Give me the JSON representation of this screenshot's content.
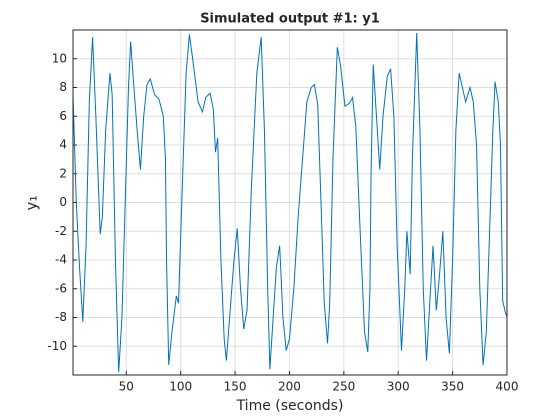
{
  "chart_data": {
    "type": "line",
    "title": "Simulated output #1: y1",
    "xlabel": "Time (seconds)",
    "ylabel": "y₁",
    "color": "#0072bd",
    "grid": true,
    "xlim": [
      1,
      400
    ],
    "ylim": [
      -12,
      12
    ],
    "xticks": [
      50,
      100,
      150,
      200,
      250,
      300,
      350,
      400
    ],
    "yticks": [
      -10,
      -8,
      -6,
      -4,
      -2,
      0,
      2,
      4,
      6,
      8,
      10
    ],
    "x": [
      1,
      4,
      7,
      10,
      13,
      16,
      19,
      22,
      26,
      28,
      31,
      35,
      37,
      40,
      43,
      46,
      49,
      52,
      54,
      57,
      60,
      63,
      66,
      69,
      72,
      76,
      80,
      84,
      86,
      87,
      89,
      92,
      96,
      98,
      101,
      105,
      108,
      111,
      116,
      120,
      123,
      127,
      130,
      132,
      134,
      137,
      140,
      142,
      145,
      149,
      152,
      155,
      158,
      161,
      165,
      170,
      174,
      177,
      180,
      182,
      185,
      188,
      191,
      194,
      197,
      200,
      204,
      208,
      212,
      216,
      220,
      223,
      226,
      229,
      232,
      235,
      237,
      240,
      244,
      247,
      251,
      255,
      258,
      261,
      265,
      269,
      272,
      274,
      275,
      277,
      280,
      283,
      286,
      290,
      293,
      296,
      299,
      303,
      306,
      308,
      311,
      313,
      317,
      320,
      323,
      326,
      329,
      332,
      335,
      338,
      341,
      344,
      347,
      350,
      353,
      356,
      359,
      362,
      366,
      369,
      372,
      375,
      378,
      381,
      384,
      387,
      389,
      392,
      394,
      396,
      398,
      400
    ],
    "values": [
      7.5,
      0,
      -4.5,
      -8.3,
      -3,
      7,
      11.5,
      6,
      -2.2,
      -1,
      5,
      9,
      7.5,
      -4,
      -11.8,
      -8,
      0,
      8,
      11.2,
      8,
      5,
      2.3,
      6,
      8.2,
      8.6,
      7.5,
      7.2,
      6,
      3,
      -4,
      -11.3,
      -9,
      -6.5,
      -7,
      0,
      9,
      11.7,
      10,
      7,
      6.3,
      7.3,
      7.6,
      6.5,
      3.5,
      4.5,
      -4,
      -9.5,
      -11,
      -8,
      -4,
      -1.8,
      -6,
      -8.8,
      -7.5,
      1,
      9,
      11.5,
      5,
      -6,
      -11.6,
      -8,
      -4.5,
      -3,
      -8,
      -10.3,
      -9.5,
      -6,
      -1,
      3,
      7,
      8,
      8.2,
      6.8,
      0,
      -7,
      -9.8,
      -7,
      3,
      10.8,
      9.5,
      6.7,
      6.9,
      7.3,
      5.3,
      -2,
      -9,
      -10.4,
      -6,
      2,
      9.6,
      6,
      2.3,
      6,
      8.8,
      9.3,
      6,
      -3,
      -10.3,
      -6,
      -2,
      -5,
      3,
      11.8,
      5,
      -6,
      -11,
      -7,
      -3,
      -7.5,
      -5,
      -2,
      -8,
      -10.5,
      -4,
      5,
      9,
      8,
      7,
      8,
      7,
      4,
      -6,
      -11.3,
      -9,
      -2,
      5,
      8.4,
      7,
      4,
      -6.8,
      -7.5,
      -8
    ]
  }
}
